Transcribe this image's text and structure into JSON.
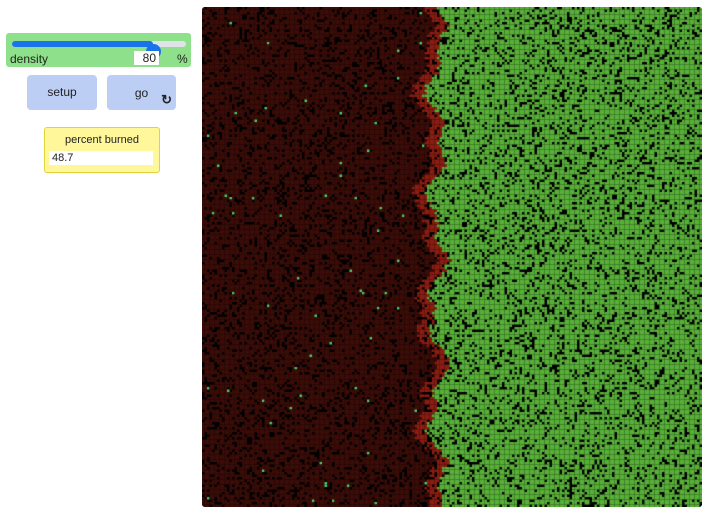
{
  "slider": {
    "label": "density",
    "value": "80",
    "units": "%",
    "min": 0,
    "max": 99,
    "current": 80
  },
  "buttons": {
    "setup": "setup",
    "go": "go"
  },
  "monitor": {
    "label": "percent burned",
    "value": "48.7"
  },
  "colors": {
    "slider_bg": "#8fe08a",
    "slider_accent": "#1a73e8",
    "button_bg": "#bccef3",
    "monitor_bg": "#fff79a",
    "burned": "#3b0c08",
    "fire_front": "#8b1d12",
    "tree": "#59b039",
    "empty": "#000000"
  }
}
